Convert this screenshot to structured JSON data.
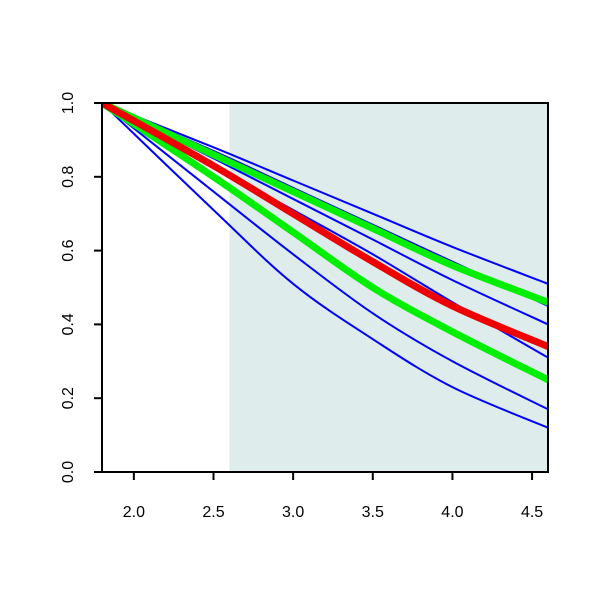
{
  "chart_data": {
    "type": "line",
    "title": "",
    "xlabel": "",
    "ylabel": "",
    "xlim": [
      1.8,
      4.6
    ],
    "ylim": [
      0.0,
      1.0
    ],
    "x_ticks": [
      2.0,
      2.5,
      3.0,
      3.5,
      4.0,
      4.5
    ],
    "x_tick_labels": [
      "2.0",
      "2.5",
      "3.0",
      "3.5",
      "4.0",
      "4.5"
    ],
    "y_ticks": [
      0.0,
      0.2,
      0.4,
      0.6,
      0.8,
      1.0
    ],
    "y_tick_labels": [
      "0.0",
      "0.2",
      "0.4",
      "0.6",
      "0.8",
      "1.0"
    ],
    "grid": false,
    "legend": "none",
    "shaded_region": {
      "x_from": 2.6,
      "x_to": 4.6,
      "color": "#dfecec"
    },
    "series": [
      {
        "color": "#0000ff",
        "width": "thin",
        "x": [
          1.8,
          2.5,
          3.0,
          3.5,
          4.0,
          4.6
        ],
        "y": [
          1.0,
          0.88,
          0.79,
          0.7,
          0.61,
          0.51
        ]
      },
      {
        "color": "#0000ff",
        "width": "thin",
        "x": [
          1.8,
          2.5,
          3.0,
          3.5,
          4.0,
          4.6
        ],
        "y": [
          1.0,
          0.87,
          0.77,
          0.67,
          0.57,
          0.45
        ]
      },
      {
        "color": "#0000ff",
        "width": "thin",
        "x": [
          1.8,
          2.5,
          3.0,
          3.5,
          4.0,
          4.6
        ],
        "y": [
          1.0,
          0.85,
          0.74,
          0.63,
          0.52,
          0.4
        ]
      },
      {
        "color": "#0000ff",
        "width": "thin",
        "x": [
          1.8,
          2.5,
          3.0,
          3.5,
          4.0,
          4.6
        ],
        "y": [
          1.0,
          0.83,
          0.71,
          0.59,
          0.46,
          0.31
        ]
      },
      {
        "color": "#0000ff",
        "width": "thin",
        "x": [
          1.8,
          2.5,
          3.0,
          3.5,
          4.0,
          4.6
        ],
        "y": [
          1.0,
          0.76,
          0.59,
          0.43,
          0.3,
          0.17
        ]
      },
      {
        "color": "#0000ff",
        "width": "thin",
        "x": [
          1.8,
          2.5,
          3.0,
          3.5,
          4.0,
          4.6
        ],
        "y": [
          1.0,
          0.71,
          0.51,
          0.36,
          0.23,
          0.12
        ]
      },
      {
        "color": "#00ee00",
        "width": "thick",
        "x": [
          1.8,
          2.5,
          3.0,
          3.5,
          4.0,
          4.6
        ],
        "y": [
          1.0,
          0.86,
          0.76,
          0.66,
          0.56,
          0.46
        ]
      },
      {
        "color": "#00ee00",
        "width": "thick",
        "x": [
          1.8,
          2.5,
          3.0,
          3.5,
          4.0,
          4.6
        ],
        "y": [
          1.0,
          0.8,
          0.65,
          0.5,
          0.38,
          0.25
        ]
      },
      {
        "color": "#ee0000",
        "width": "thick",
        "x": [
          1.8,
          2.5,
          3.0,
          3.5,
          4.0,
          4.6
        ],
        "y": [
          1.0,
          0.83,
          0.7,
          0.57,
          0.45,
          0.34
        ]
      }
    ]
  }
}
